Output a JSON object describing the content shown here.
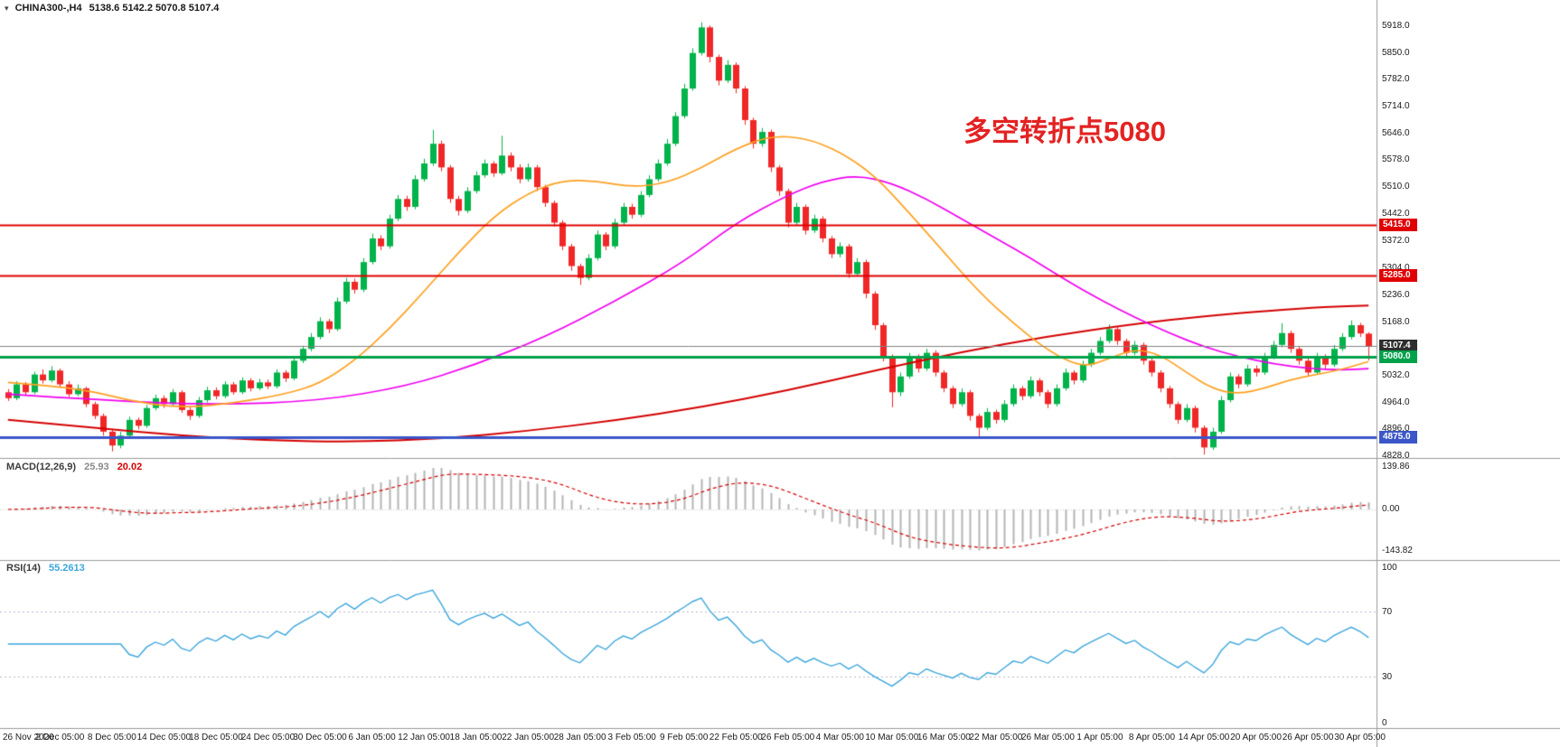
{
  "window": {
    "symbol": "CHINA300-,H4",
    "ohlc": "5138.6 5142.2 5070.8 5107.4"
  },
  "annotation": {
    "text": "多空转折点5080",
    "color": "#e32222"
  },
  "chart_data": {
    "type": "candlestick",
    "symbol": "CHINA300-",
    "timeframe": "H4",
    "current_ohlc": {
      "open": 5138.6,
      "high": 5142.2,
      "low": 5070.8,
      "close": 5107.4
    },
    "y_top": 5918,
    "y_bottom": 4828,
    "y_ticks": [
      5918,
      5850,
      5782,
      5714,
      5646,
      5578,
      5510,
      5442,
      5372,
      5304,
      5236,
      5168,
      5032,
      4964,
      4896,
      4828
    ],
    "x_labels": [
      "26 Nov 2020",
      "2 Dec 05:00",
      "8 Dec 05:00",
      "14 Dec 05:00",
      "18 Dec 05:00",
      "24 Dec 05:00",
      "30 Dec 05:00",
      "6 Jan 05:00",
      "12 Jan 05:00",
      "18 Jan 05:00",
      "22 Jan 05:00",
      "28 Jan 05:00",
      "3 Feb 05:00",
      "9 Feb 05:00",
      "22 Feb 05:00",
      "26 Feb 05:00",
      "4 Mar 05:00",
      "10 Mar 05:00",
      "16 Mar 05:00",
      "22 Mar 05:00",
      "26 Mar 05:00",
      "1 Apr 05:00",
      "8 Apr 05:00",
      "14 Apr 05:00",
      "20 Apr 05:00",
      "26 Apr 05:00",
      "30 Apr 05:00"
    ],
    "bars_per_label": 6,
    "colors": {
      "up": "#00b34a",
      "down": "#f02727"
    },
    "candles": [
      [
        4990,
        4998,
        4968,
        4975
      ],
      [
        4975,
        5018,
        4970,
        5010
      ],
      [
        5010,
        5016,
        4982,
        4990
      ],
      [
        4990,
        5042,
        4985,
        5035
      ],
      [
        5035,
        5048,
        5012,
        5020
      ],
      [
        5020,
        5056,
        5015,
        5045
      ],
      [
        5045,
        5050,
        5002,
        5010
      ],
      [
        5010,
        5018,
        4978,
        4985
      ],
      [
        4985,
        5010,
        4980,
        5000
      ],
      [
        5000,
        5004,
        4952,
        4960
      ],
      [
        4960,
        4966,
        4922,
        4930
      ],
      [
        4930,
        4936,
        4880,
        4890
      ],
      [
        4890,
        4896,
        4840,
        4855
      ],
      [
        4855,
        4890,
        4848,
        4880
      ],
      [
        4880,
        4928,
        4874,
        4920
      ],
      [
        4920,
        4926,
        4896,
        4905
      ],
      [
        4905,
        4958,
        4900,
        4950
      ],
      [
        4950,
        4984,
        4944,
        4975
      ],
      [
        4975,
        4982,
        4950,
        4960
      ],
      [
        4960,
        4998,
        4955,
        4990
      ],
      [
        4990,
        4995,
        4938,
        4945
      ],
      [
        4945,
        4952,
        4920,
        4930
      ],
      [
        4930,
        4978,
        4925,
        4970
      ],
      [
        4970,
        5004,
        4964,
        4995
      ],
      [
        4995,
        5002,
        4972,
        4980
      ],
      [
        4980,
        5018,
        4975,
        5010
      ],
      [
        5010,
        5016,
        4984,
        4990
      ],
      [
        4990,
        5028,
        4985,
        5020
      ],
      [
        5020,
        5026,
        4992,
        5000
      ],
      [
        5000,
        5024,
        4995,
        5015
      ],
      [
        5015,
        5022,
        4998,
        5005
      ],
      [
        5005,
        5048,
        5000,
        5040
      ],
      [
        5040,
        5046,
        5016,
        5025
      ],
      [
        5025,
        5078,
        5020,
        5070
      ],
      [
        5070,
        5108,
        5064,
        5100
      ],
      [
        5100,
        5140,
        5094,
        5130
      ],
      [
        5130,
        5180,
        5124,
        5170
      ],
      [
        5170,
        5176,
        5140,
        5150
      ],
      [
        5150,
        5230,
        5145,
        5220
      ],
      [
        5220,
        5280,
        5214,
        5270
      ],
      [
        5270,
        5278,
        5240,
        5250
      ],
      [
        5250,
        5330,
        5244,
        5320
      ],
      [
        5320,
        5392,
        5314,
        5380
      ],
      [
        5380,
        5388,
        5350,
        5360
      ],
      [
        5360,
        5440,
        5354,
        5430
      ],
      [
        5430,
        5490,
        5424,
        5480
      ],
      [
        5480,
        5488,
        5450,
        5460
      ],
      [
        5460,
        5540,
        5454,
        5530
      ],
      [
        5530,
        5582,
        5524,
        5570
      ],
      [
        5570,
        5655,
        5564,
        5620
      ],
      [
        5620,
        5628,
        5550,
        5560
      ],
      [
        5560,
        5566,
        5470,
        5480
      ],
      [
        5480,
        5488,
        5438,
        5450
      ],
      [
        5450,
        5510,
        5444,
        5500
      ],
      [
        5500,
        5550,
        5494,
        5540
      ],
      [
        5540,
        5580,
        5534,
        5570
      ],
      [
        5570,
        5576,
        5536,
        5545
      ],
      [
        5545,
        5640,
        5540,
        5590
      ],
      [
        5590,
        5598,
        5550,
        5560
      ],
      [
        5560,
        5568,
        5520,
        5530
      ],
      [
        5530,
        5570,
        5524,
        5560
      ],
      [
        5560,
        5566,
        5500,
        5510
      ],
      [
        5510,
        5516,
        5460,
        5470
      ],
      [
        5470,
        5476,
        5410,
        5420
      ],
      [
        5420,
        5426,
        5350,
        5360
      ],
      [
        5360,
        5366,
        5298,
        5310
      ],
      [
        5310,
        5316,
        5262,
        5280
      ],
      [
        5280,
        5340,
        5274,
        5330
      ],
      [
        5330,
        5400,
        5324,
        5390
      ],
      [
        5390,
        5396,
        5350,
        5360
      ],
      [
        5360,
        5430,
        5354,
        5420
      ],
      [
        5420,
        5470,
        5414,
        5460
      ],
      [
        5460,
        5468,
        5430,
        5440
      ],
      [
        5440,
        5500,
        5434,
        5490
      ],
      [
        5490,
        5540,
        5484,
        5530
      ],
      [
        5530,
        5580,
        5524,
        5570
      ],
      [
        5570,
        5632,
        5564,
        5620
      ],
      [
        5620,
        5700,
        5614,
        5690
      ],
      [
        5690,
        5772,
        5684,
        5760
      ],
      [
        5760,
        5862,
        5754,
        5850
      ],
      [
        5850,
        5928,
        5844,
        5915
      ],
      [
        5915,
        5920,
        5826,
        5840
      ],
      [
        5840,
        5846,
        5768,
        5780
      ],
      [
        5780,
        5832,
        5774,
        5820
      ],
      [
        5820,
        5826,
        5748,
        5760
      ],
      [
        5760,
        5766,
        5668,
        5680
      ],
      [
        5680,
        5686,
        5608,
        5620
      ],
      [
        5620,
        5660,
        5612,
        5650
      ],
      [
        5650,
        5656,
        5548,
        5560
      ],
      [
        5560,
        5566,
        5488,
        5500
      ],
      [
        5500,
        5506,
        5408,
        5420
      ],
      [
        5420,
        5470,
        5412,
        5460
      ],
      [
        5460,
        5466,
        5390,
        5400
      ],
      [
        5400,
        5440,
        5394,
        5430
      ],
      [
        5430,
        5436,
        5370,
        5380
      ],
      [
        5380,
        5386,
        5330,
        5340
      ],
      [
        5340,
        5370,
        5332,
        5360
      ],
      [
        5360,
        5366,
        5280,
        5290
      ],
      [
        5290,
        5330,
        5284,
        5320
      ],
      [
        5320,
        5326,
        5228,
        5240
      ],
      [
        5240,
        5246,
        5148,
        5160
      ],
      [
        5160,
        5166,
        5068,
        5080
      ],
      [
        5080,
        5086,
        4952,
        4990
      ],
      [
        4990,
        5040,
        4980,
        5030
      ],
      [
        5030,
        5090,
        5024,
        5080
      ],
      [
        5080,
        5086,
        5040,
        5050
      ],
      [
        5050,
        5100,
        5044,
        5090
      ],
      [
        5090,
        5096,
        5030,
        5040
      ],
      [
        5040,
        5046,
        4990,
        5000
      ],
      [
        5000,
        5006,
        4950,
        4960
      ],
      [
        4960,
        5000,
        4954,
        4990
      ],
      [
        4990,
        4996,
        4918,
        4930
      ],
      [
        4930,
        4936,
        4876,
        4900
      ],
      [
        4900,
        4950,
        4894,
        4940
      ],
      [
        4940,
        4946,
        4910,
        4920
      ],
      [
        4920,
        4970,
        4914,
        4960
      ],
      [
        4960,
        5010,
        4954,
        5000
      ],
      [
        5000,
        5006,
        4970,
        4980
      ],
      [
        4980,
        5030,
        4974,
        5020
      ],
      [
        5020,
        5026,
        4980,
        4990
      ],
      [
        4990,
        4996,
        4950,
        4960
      ],
      [
        4960,
        5010,
        4954,
        5000
      ],
      [
        5000,
        5050,
        4994,
        5040
      ],
      [
        5040,
        5046,
        5010,
        5020
      ],
      [
        5020,
        5070,
        5014,
        5060
      ],
      [
        5060,
        5100,
        5054,
        5090
      ],
      [
        5090,
        5130,
        5084,
        5120
      ],
      [
        5120,
        5162,
        5114,
        5150
      ],
      [
        5150,
        5156,
        5110,
        5120
      ],
      [
        5120,
        5126,
        5080,
        5090
      ],
      [
        5090,
        5120,
        5084,
        5110
      ],
      [
        5110,
        5116,
        5060,
        5070
      ],
      [
        5070,
        5076,
        5030,
        5040
      ],
      [
        5040,
        5046,
        4990,
        5000
      ],
      [
        5000,
        5006,
        4950,
        4960
      ],
      [
        4960,
        4966,
        4910,
        4920
      ],
      [
        4920,
        4960,
        4914,
        4950
      ],
      [
        4950,
        4956,
        4888,
        4900
      ],
      [
        4900,
        4906,
        4832,
        4850
      ],
      [
        4850,
        4900,
        4844,
        4890
      ],
      [
        4890,
        4980,
        4884,
        4970
      ],
      [
        4970,
        5040,
        4964,
        5030
      ],
      [
        5030,
        5036,
        5000,
        5010
      ],
      [
        5010,
        5060,
        5004,
        5050
      ],
      [
        5050,
        5058,
        5030,
        5040
      ],
      [
        5040,
        5090,
        5034,
        5080
      ],
      [
        5080,
        5120,
        5074,
        5110
      ],
      [
        5110,
        5165,
        5104,
        5140
      ],
      [
        5140,
        5146,
        5090,
        5100
      ],
      [
        5100,
        5106,
        5060,
        5070
      ],
      [
        5070,
        5076,
        5030,
        5040
      ],
      [
        5040,
        5090,
        5034,
        5080
      ],
      [
        5080,
        5086,
        5050,
        5060
      ],
      [
        5060,
        5110,
        5054,
        5100
      ],
      [
        5100,
        5140,
        5094,
        5130
      ],
      [
        5130,
        5172,
        5124,
        5160
      ],
      [
        5160,
        5166,
        5130,
        5139
      ],
      [
        5138.6,
        5142.2,
        5070.8,
        5107.4
      ]
    ],
    "overlays": [
      {
        "name": "ma-slow",
        "color": "#d40000",
        "width": 2,
        "points": [
          [
            0,
            4920
          ],
          [
            10,
            4900
          ],
          [
            20,
            4880
          ],
          [
            30,
            4868
          ],
          [
            40,
            4864
          ],
          [
            50,
            4872
          ],
          [
            60,
            4892
          ],
          [
            70,
            4918
          ],
          [
            80,
            4952
          ],
          [
            90,
            4995
          ],
          [
            100,
            5045
          ],
          [
            110,
            5092
          ],
          [
            120,
            5132
          ],
          [
            130,
            5163
          ],
          [
            138,
            5183
          ],
          [
            146,
            5198
          ],
          [
            152,
            5206
          ],
          [
            157,
            5210
          ]
        ]
      },
      {
        "name": "ma-mid",
        "color": "#f000f0",
        "width": 1.7,
        "points": [
          [
            0,
            4985
          ],
          [
            12,
            4968
          ],
          [
            24,
            4958
          ],
          [
            36,
            4968
          ],
          [
            46,
            5005
          ],
          [
            54,
            5060
          ],
          [
            62,
            5130
          ],
          [
            70,
            5220
          ],
          [
            78,
            5320
          ],
          [
            84,
            5420
          ],
          [
            90,
            5490
          ],
          [
            94,
            5525
          ],
          [
            98,
            5540
          ],
          [
            102,
            5520
          ],
          [
            106,
            5480
          ],
          [
            110,
            5430
          ],
          [
            114,
            5380
          ],
          [
            118,
            5330
          ],
          [
            122,
            5275
          ],
          [
            126,
            5225
          ],
          [
            130,
            5180
          ],
          [
            134,
            5140
          ],
          [
            138,
            5105
          ],
          [
            142,
            5080
          ],
          [
            146,
            5062
          ],
          [
            150,
            5050
          ],
          [
            154,
            5046
          ],
          [
            157,
            5050
          ]
        ]
      },
      {
        "name": "ma-fast",
        "color": "#ffa020",
        "width": 1.7,
        "points": [
          [
            0,
            5015
          ],
          [
            8,
            5002
          ],
          [
            14,
            4968
          ],
          [
            20,
            4950
          ],
          [
            26,
            4962
          ],
          [
            32,
            4985
          ],
          [
            36,
            5012
          ],
          [
            40,
            5070
          ],
          [
            44,
            5150
          ],
          [
            48,
            5245
          ],
          [
            52,
            5345
          ],
          [
            56,
            5435
          ],
          [
            60,
            5495
          ],
          [
            64,
            5528
          ],
          [
            68,
            5525
          ],
          [
            72,
            5510
          ],
          [
            76,
            5520
          ],
          [
            80,
            5558
          ],
          [
            84,
            5608
          ],
          [
            88,
            5640
          ],
          [
            92,
            5635
          ],
          [
            96,
            5600
          ],
          [
            100,
            5540
          ],
          [
            104,
            5445
          ],
          [
            108,
            5345
          ],
          [
            112,
            5245
          ],
          [
            116,
            5165
          ],
          [
            120,
            5095
          ],
          [
            124,
            5052
          ],
          [
            127,
            5075
          ],
          [
            130,
            5100
          ],
          [
            133,
            5085
          ],
          [
            136,
            5040
          ],
          [
            139,
            4998
          ],
          [
            142,
            4985
          ],
          [
            145,
            5000
          ],
          [
            148,
            5022
          ],
          [
            151,
            5035
          ],
          [
            154,
            5048
          ],
          [
            157,
            5068
          ]
        ]
      }
    ],
    "hlines": [
      {
        "price": 5415.0,
        "color": "#e00000",
        "width": 2,
        "label": "5415.0",
        "badge": "#e00000"
      },
      {
        "price": 5285.0,
        "color": "#e00000",
        "width": 2,
        "label": "5285.0",
        "badge": "#e00000"
      },
      {
        "price": 5107.4,
        "color": "#808080",
        "width": 1,
        "label": "5107.4",
        "badge": "#2e2e2e"
      },
      {
        "price": 5080.0,
        "color": "#00a14b",
        "width": 3,
        "label": "5080.0",
        "badge": "#00a14b"
      },
      {
        "price": 4875.0,
        "color": "#3a56c8",
        "width": 3,
        "label": "4875.0",
        "badge": "#3a56c8"
      }
    ],
    "macd": {
      "label": "MACD(12,26,9)",
      "current_text": [
        "25.93",
        "20.02"
      ],
      "axis_ticks": [
        "139.86",
        "0.00",
        "-143.82"
      ],
      "histogram_color": "#b4b4b4",
      "value_main_color": "#8a8a8a",
      "signal_color": "#d40000"
    },
    "rsi": {
      "label": "RSI(14)",
      "current_text": "55.2613",
      "axis_ticks": [
        "100",
        "70",
        "30",
        "0"
      ],
      "levels": [
        70,
        30
      ],
      "line_color": "#3da6dc",
      "level_color": "#b6b6ce"
    }
  }
}
